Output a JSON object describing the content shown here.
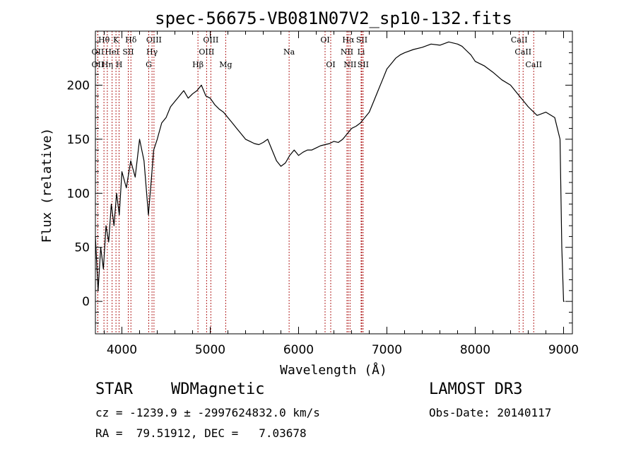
{
  "chart_data": {
    "type": "line",
    "title": "spec-56675-VB081N07V2_sp10-132.fits",
    "xlabel": "Wavelength (Å)",
    "ylabel": "Flux (relative)",
    "xlim": [
      3700,
      9100
    ],
    "ylim": [
      -30,
      250
    ],
    "xticks": [
      4000,
      5000,
      6000,
      7000,
      8000,
      9000
    ],
    "yticks": [
      0,
      50,
      100,
      150,
      200
    ],
    "line_color": "#000000",
    "marker_color": "#b22222",
    "spectrum": {
      "x": [
        3700,
        3730,
        3760,
        3790,
        3820,
        3850,
        3880,
        3910,
        3940,
        3970,
        4000,
        4050,
        4100,
        4150,
        4200,
        4250,
        4300,
        4330,
        4360,
        4400,
        4450,
        4500,
        4550,
        4600,
        4650,
        4700,
        4750,
        4800,
        4850,
        4900,
        4950,
        5000,
        5050,
        5100,
        5150,
        5200,
        5250,
        5300,
        5350,
        5400,
        5450,
        5500,
        5550,
        5600,
        5650,
        5700,
        5750,
        5800,
        5850,
        5900,
        5950,
        6000,
        6050,
        6100,
        6150,
        6200,
        6250,
        6300,
        6350,
        6400,
        6450,
        6500,
        6550,
        6600,
        6650,
        6700,
        6750,
        6800,
        6850,
        6900,
        6950,
        7000,
        7050,
        7100,
        7150,
        7200,
        7300,
        7400,
        7500,
        7600,
        7700,
        7800,
        7850,
        7900,
        7950,
        8000,
        8100,
        8200,
        8300,
        8400,
        8500,
        8600,
        8700,
        8800,
        8900,
        8960,
        8980,
        9000,
        9010
      ],
      "y": [
        60,
        10,
        50,
        30,
        70,
        55,
        90,
        70,
        100,
        80,
        120,
        105,
        130,
        115,
        150,
        130,
        80,
        110,
        140,
        150,
        165,
        170,
        180,
        185,
        190,
        195,
        188,
        192,
        195,
        200,
        190,
        188,
        182,
        178,
        175,
        170,
        165,
        160,
        155,
        150,
        148,
        146,
        145,
        147,
        150,
        140,
        130,
        125,
        128,
        135,
        140,
        135,
        138,
        140,
        140,
        142,
        144,
        145,
        146,
        148,
        147,
        150,
        155,
        160,
        162,
        165,
        170,
        175,
        185,
        195,
        205,
        215,
        220,
        225,
        228,
        230,
        233,
        235,
        238,
        237,
        240,
        238,
        236,
        232,
        228,
        222,
        218,
        212,
        205,
        200,
        190,
        180,
        172,
        175,
        170,
        150,
        50,
        0,
        0
      ]
    },
    "lines": [
      {
        "label": "Hθ",
        "x": 3797,
        "row": 0
      },
      {
        "label": "OII",
        "x": 3727,
        "row": 1
      },
      {
        "label": "OII",
        "x": 3727,
        "row": 2
      },
      {
        "label": "K",
        "x": 3933,
        "row": 0
      },
      {
        "label": "HeI",
        "x": 3889,
        "row": 1
      },
      {
        "label": "Hη",
        "x": 3835,
        "row": 2
      },
      {
        "label": "Hδ",
        "x": 4102,
        "row": 0
      },
      {
        "label": "SII",
        "x": 4072,
        "row": 1
      },
      {
        "label": "H",
        "x": 3968,
        "row": 2
      },
      {
        "label": "OIII",
        "x": 4363,
        "row": 0
      },
      {
        "label": "Hγ",
        "x": 4341,
        "row": 1
      },
      {
        "label": "G",
        "x": 4304,
        "row": 2
      },
      {
        "label": "OIII",
        "x": 5007,
        "row": 0
      },
      {
        "label": "OIII",
        "x": 4959,
        "row": 1
      },
      {
        "label": "Hβ",
        "x": 4861,
        "row": 2
      },
      {
        "label": "Mg",
        "x": 5175,
        "row": 2
      },
      {
        "label": "Na",
        "x": 5893,
        "row": 1
      },
      {
        "label": "OI",
        "x": 6300,
        "row": 0
      },
      {
        "label": "OI",
        "x": 6364,
        "row": 2
      },
      {
        "label": "Hα",
        "x": 6563,
        "row": 0
      },
      {
        "label": "NII",
        "x": 6548,
        "row": 1
      },
      {
        "label": "NII",
        "x": 6583,
        "row": 2
      },
      {
        "label": "SII",
        "x": 6716,
        "row": 0
      },
      {
        "label": "Li",
        "x": 6708,
        "row": 1
      },
      {
        "label": "SII",
        "x": 6731,
        "row": 2
      },
      {
        "label": "CaII",
        "x": 8498,
        "row": 0
      },
      {
        "label": "CaII",
        "x": 8542,
        "row": 1
      },
      {
        "label": "CaII",
        "x": 8662,
        "row": 2
      }
    ]
  },
  "info": {
    "class_label": "STAR",
    "subclass": "WDMagnetic",
    "survey": "LAMOST DR3",
    "redshift_line": "cz = -1239.9 ± -2997624832.0 km/s",
    "obs_date_line": "Obs-Date: 20140117",
    "coords_line": "RA =  79.51912, DEC =   7.03678"
  }
}
